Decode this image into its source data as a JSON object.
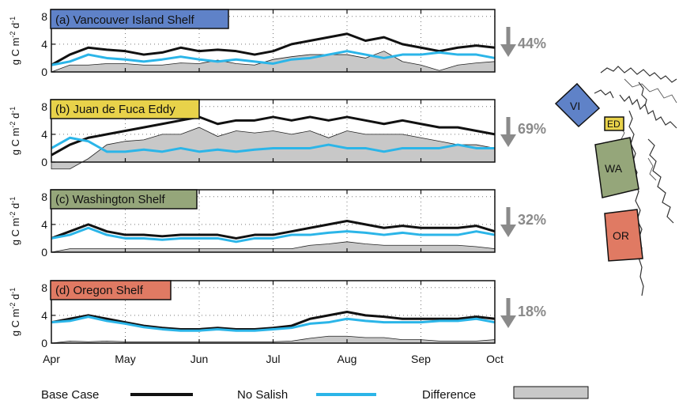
{
  "chart_data": {
    "type": "line",
    "x_ticks": [
      "Apr",
      "May",
      "Jun",
      "Jul",
      "Aug",
      "Sep",
      "Oct"
    ],
    "y_ticks": [
      0,
      4,
      8
    ],
    "ylim": [
      0,
      9
    ],
    "ylabel_base": "g C m",
    "ylabel_exp1": "-2",
    "ylabel_mid": " d",
    "ylabel_exp2": "-1",
    "legend": {
      "base": "Base Case",
      "nosalish": "No Salish",
      "difference": "Difference"
    },
    "colors": {
      "base": "#111111",
      "nosalish": "#2bb5e8",
      "difference": "#c8c8c8",
      "arrow": "#8a8a8a"
    },
    "series_months": [
      0,
      0.25,
      0.5,
      0.75,
      1,
      1.25,
      1.5,
      1.75,
      2,
      2.25,
      2.5,
      2.75,
      3,
      3.25,
      3.5,
      3.75,
      4,
      4.25,
      4.5,
      4.75,
      5,
      5.25,
      5.5,
      5.75,
      6
    ],
    "panels": [
      {
        "title": "(a) Vancouver Island Shelf",
        "color": "#5f82c8",
        "reduction": "44%",
        "base": [
          1.0,
          2.5,
          3.5,
          3.2,
          3.0,
          2.5,
          2.8,
          3.5,
          3.0,
          3.2,
          3.0,
          2.5,
          3.0,
          4.0,
          4.5,
          5.0,
          5.5,
          4.5,
          5.0,
          4.0,
          3.5,
          3.0,
          3.5,
          3.8,
          3.5
        ],
        "nosalish": [
          1.0,
          1.5,
          2.5,
          2.0,
          1.8,
          1.5,
          1.8,
          2.2,
          1.8,
          1.5,
          1.8,
          1.5,
          1.2,
          1.8,
          2.0,
          2.5,
          3.0,
          2.5,
          2.0,
          2.5,
          2.5,
          2.8,
          2.5,
          2.5,
          2.0
        ]
      },
      {
        "title": "(b) Juan de Fuca Eddy",
        "color": "#e8d24a",
        "reduction": "69%",
        "base": [
          1.0,
          2.5,
          3.5,
          4.0,
          4.5,
          5.0,
          5.5,
          6.0,
          6.5,
          5.5,
          6.0,
          6.0,
          6.5,
          6.0,
          6.5,
          6.0,
          6.5,
          6.0,
          5.5,
          6.0,
          5.5,
          5.0,
          5.0,
          4.5,
          4.0
        ],
        "nosalish": [
          2.0,
          3.5,
          3.0,
          1.5,
          1.5,
          1.8,
          1.5,
          2.0,
          1.5,
          1.8,
          1.5,
          1.8,
          2.0,
          2.0,
          2.0,
          2.5,
          2.0,
          2.0,
          1.5,
          2.0,
          2.0,
          2.0,
          2.5,
          2.0,
          2.0
        ]
      },
      {
        "title": "(c) Washington Shelf",
        "color": "#95a67a",
        "reduction": "32%",
        "base": [
          2.0,
          3.0,
          4.0,
          3.0,
          2.5,
          2.5,
          2.3,
          2.5,
          2.5,
          2.5,
          2.0,
          2.5,
          2.5,
          3.0,
          3.5,
          4.0,
          4.5,
          4.0,
          3.5,
          3.8,
          3.5,
          3.5,
          3.5,
          3.8,
          3.0
        ],
        "nosalish": [
          2.0,
          2.5,
          3.5,
          2.5,
          2.0,
          2.0,
          1.8,
          2.0,
          2.0,
          2.0,
          1.5,
          2.0,
          2.0,
          2.5,
          2.5,
          2.8,
          3.0,
          2.8,
          2.5,
          2.8,
          2.5,
          2.5,
          2.5,
          3.0,
          2.5
        ]
      },
      {
        "title": "(d) Oregon Shelf",
        "color": "#e07a63",
        "reduction": "18%",
        "base": [
          3.0,
          3.5,
          4.0,
          3.5,
          3.0,
          2.5,
          2.2,
          2.0,
          2.0,
          2.2,
          2.0,
          2.0,
          2.2,
          2.5,
          3.5,
          4.0,
          4.5,
          4.0,
          3.8,
          3.5,
          3.5,
          3.5,
          3.5,
          3.8,
          3.5
        ],
        "nosalish": [
          3.0,
          3.2,
          3.8,
          3.2,
          2.8,
          2.3,
          2.0,
          1.8,
          1.8,
          2.0,
          1.8,
          1.8,
          2.0,
          2.2,
          2.8,
          3.0,
          3.5,
          3.2,
          3.0,
          3.0,
          3.0,
          3.2,
          3.2,
          3.5,
          3.0
        ]
      }
    ],
    "map_regions": [
      "VI",
      "ED",
      "WA",
      "OR"
    ]
  }
}
